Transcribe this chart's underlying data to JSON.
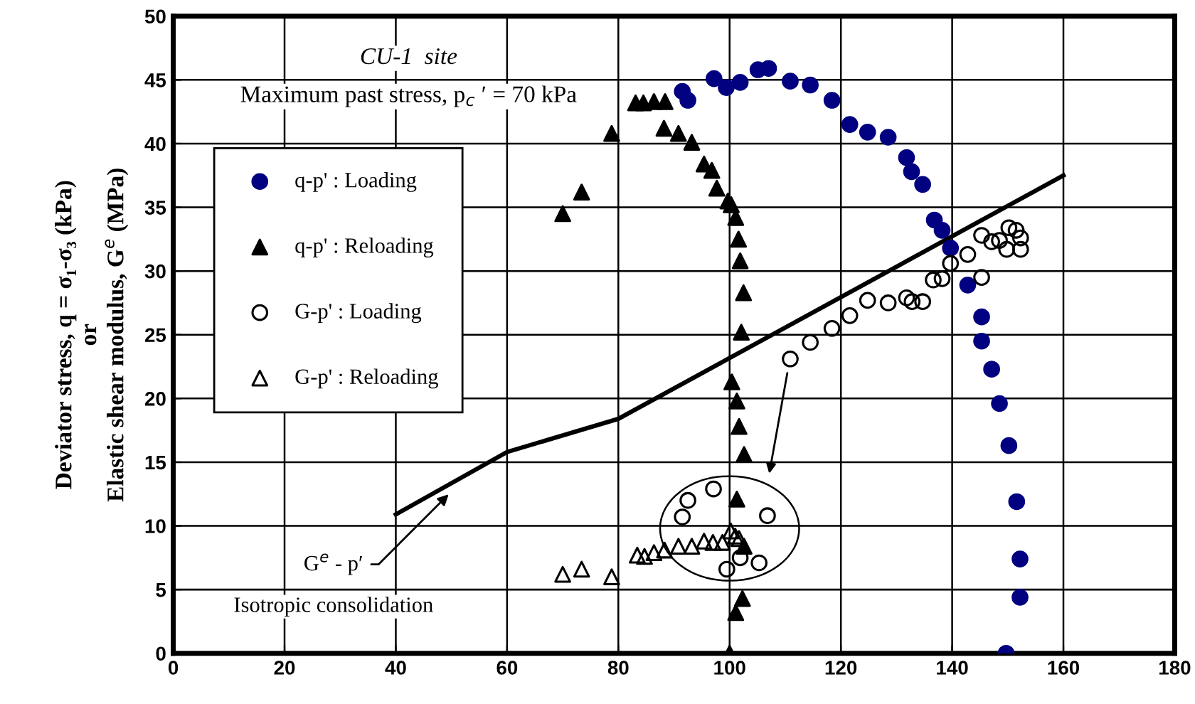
{
  "chart_data": {
    "type": "scatter",
    "ylabel": "Deviator stress, q = σ₁-σ₃ (kPa)\nor\nElastic shear modulus, G$^{e}$ (MPa)",
    "xlim": [
      0,
      180
    ],
    "xticks": [
      0,
      20,
      40,
      60,
      80,
      100,
      120,
      140,
      160,
      180
    ],
    "ylim": [
      0,
      50
    ],
    "yticks": [
      0,
      5,
      10,
      15,
      20,
      25,
      30,
      35,
      40,
      45,
      50
    ],
    "grid": true,
    "legend": "top left",
    "annotations": [
      "CU-1  site",
      "Maximum past stress, p$_{c}$ ′ = 70 kPa",
      {
        "text": "G$^{e}$ - p′",
        "x": 50,
        "y": 12.7
      },
      "Isotropic consolidation"
    ],
    "series": [
      {
        "name": "q-p' : Loading",
        "marker": "circle",
        "color": "#000080",
        "x": [
          91.5,
          92.5,
          97.2,
          99.4,
          101.9,
          105.1,
          107.0,
          110.9,
          114.5,
          118.4,
          121.6,
          124.8,
          128.5,
          131.8,
          132.7,
          134.7,
          136.8,
          138.2,
          139.7,
          142.8,
          145.3,
          145.3,
          147.1,
          148.5,
          150.2,
          151.6,
          152.2,
          152.2,
          149.7
        ],
        "values": [
          44.1,
          43.4,
          45.1,
          44.4,
          44.8,
          45.8,
          45.9,
          44.9,
          44.6,
          43.4,
          41.5,
          40.9,
          40.5,
          38.9,
          37.8,
          36.8,
          34.0,
          33.2,
          31.8,
          28.9,
          26.4,
          24.5,
          22.3,
          19.6,
          16.3,
          11.9,
          7.4,
          4.4,
          0
        ]
      },
      {
        "name": "q-p' : Reloading",
        "marker": "triangle",
        "color": "#000000",
        "x": [
          70.0,
          73.4,
          78.8,
          83.1,
          84.5,
          86.4,
          88.4,
          88.2,
          90.8,
          93.2,
          95.4,
          96.8,
          97.7,
          99.7,
          100.3,
          101.1,
          101.6,
          101.9,
          102.5,
          102.1,
          100.4,
          101.3,
          101.7,
          102.6,
          101.3,
          102.6,
          102.3,
          101.1,
          100.0
        ],
        "values": [
          34.5,
          36.2,
          40.8,
          43.2,
          43.2,
          43.3,
          43.3,
          41.2,
          40.8,
          40.1,
          38.4,
          37.9,
          36.5,
          35.5,
          35.2,
          34.2,
          32.5,
          30.8,
          28.3,
          25.2,
          21.3,
          19.8,
          17.8,
          15.6,
          12.1,
          8.4,
          4.3,
          3.2,
          0
        ]
      },
      {
        "name": "G-p' : Loading",
        "marker": "circle",
        "color": "#000000",
        "x": [
          91.5,
          92.5,
          97.1,
          99.5,
          101.9,
          105.3,
          106.8,
          110.9,
          114.5,
          118.4,
          121.6,
          124.8,
          128.5,
          131.8,
          132.8,
          134.7,
          136.6,
          138.2,
          139.7,
          142.8,
          145.3,
          145.3,
          147.1,
          148.5,
          149.8,
          150.2,
          151.5,
          152.3,
          152.3
        ],
        "values": [
          10.7,
          12.0,
          12.9,
          6.6,
          7.5,
          7.1,
          10.8,
          23.1,
          24.4,
          25.5,
          26.5,
          27.7,
          27.5,
          27.9,
          27.6,
          27.6,
          29.3,
          29.4,
          30.6,
          31.3,
          29.5,
          32.8,
          32.3,
          32.4,
          31.7,
          33.4,
          33.2,
          32.6,
          31.7
        ]
      },
      {
        "name": "G-p' : Reloading",
        "marker": "triangle",
        "color": "#000000",
        "x": [
          70.0,
          73.4,
          78.8,
          83.4,
          84.7,
          86.4,
          88.3,
          90.8,
          93.2,
          95.4,
          97.0,
          98.7,
          100.2,
          101.0,
          101.7
        ],
        "values": [
          6.2,
          6.6,
          6.0,
          7.7,
          7.6,
          7.9,
          8.1,
          8.4,
          8.4,
          8.8,
          8.7,
          8.7,
          9.6,
          9.2,
          9.0
        ]
      },
      {
        "type": "line",
        "marker": "none",
        "line_style": "solid",
        "color": "#000000",
        "x": [
          40,
          60,
          80,
          160
        ],
        "values": [
          10.9,
          15.8,
          18.4,
          37.5
        ]
      }
    ]
  }
}
